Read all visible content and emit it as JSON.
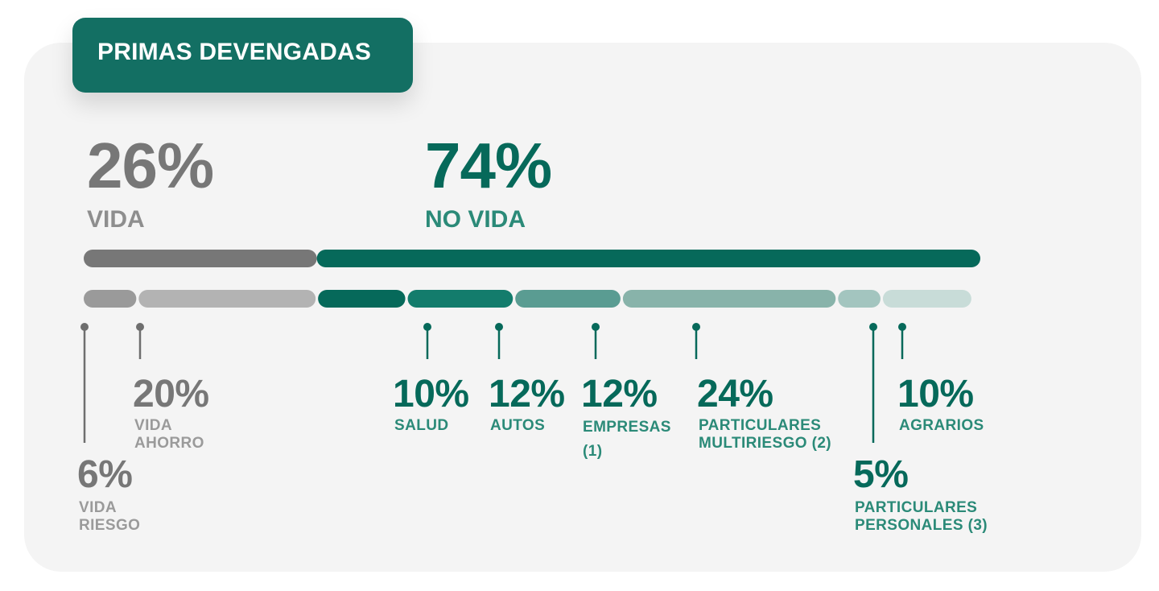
{
  "header": {
    "title": "PRIMAS DEVENGADAS"
  },
  "colors": {
    "accent": "#136f63",
    "vida_dark": "#777777",
    "vida_text": "#8e8e8e",
    "no_vida": "#06695a",
    "no_vida_label": "#2b8a78",
    "card": "#f4f4f4"
  },
  "chart_data": {
    "type": "bar",
    "title": "PRIMAS DEVENGADAS",
    "groups": [
      {
        "value": 26,
        "value_label": "26%",
        "name": "VIDA",
        "color": "#777777"
      },
      {
        "value": 74,
        "value_label": "74%",
        "name": "NO VIDA",
        "color": "#06695a"
      }
    ],
    "segments": [
      {
        "group": "VIDA",
        "value": 6,
        "value_label": "6%",
        "label_lines": [
          "VIDA",
          "RIESGO"
        ],
        "color": "#9a9a9a"
      },
      {
        "group": "VIDA",
        "value": 20,
        "value_label": "20%",
        "label_lines": [
          "VIDA",
          "AHORRO"
        ],
        "color": "#b3b3b3"
      },
      {
        "group": "NO VIDA",
        "value": 10,
        "value_label": "10%",
        "label_lines": [
          "SALUD"
        ],
        "color": "#06695a"
      },
      {
        "group": "NO VIDA",
        "value": 12,
        "value_label": "12%",
        "label_lines": [
          "AUTOS"
        ],
        "color": "#137c6c"
      },
      {
        "group": "NO VIDA",
        "value": 12,
        "value_label": "12%",
        "label_lines": [
          "EMPRESAS",
          "(1)"
        ],
        "color": "#5a9c92"
      },
      {
        "group": "NO VIDA",
        "value": 24,
        "value_label": "24%",
        "label_lines": [
          "PARTICULARES",
          "MULTIRIESGO (2)"
        ],
        "color": "#88b3aa"
      },
      {
        "group": "NO VIDA",
        "value": 5,
        "value_label": "5%",
        "label_lines": [
          "PARTICULARES",
          "PERSONALES (3)"
        ],
        "color": "#a3c5bf"
      },
      {
        "group": "NO VIDA",
        "value": 10,
        "value_label": "10%",
        "label_lines": [
          "AGRARIOS"
        ],
        "color": "#c8dcd8"
      }
    ]
  }
}
